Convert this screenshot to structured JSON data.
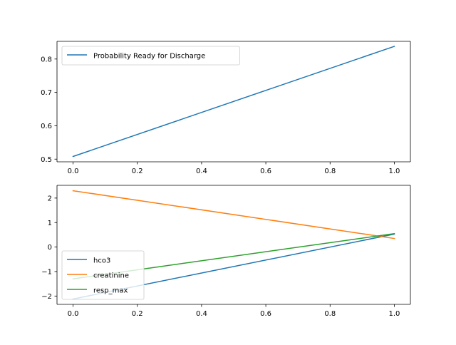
{
  "chart_data": [
    {
      "type": "line",
      "title": "",
      "xlabel": "",
      "ylabel": "",
      "xlim": [
        -0.05,
        1.05
      ],
      "ylim": [
        0.492,
        0.853
      ],
      "xticks": [
        {
          "v": 0.0,
          "label": "0.0"
        },
        {
          "v": 0.2,
          "label": "0.2"
        },
        {
          "v": 0.4,
          "label": "0.4"
        },
        {
          "v": 0.6,
          "label": "0.6"
        },
        {
          "v": 0.8,
          "label": "0.8"
        },
        {
          "v": 1.0,
          "label": "1.0"
        }
      ],
      "yticks": [
        {
          "v": 0.5,
          "label": "0.5"
        },
        {
          "v": 0.6,
          "label": "0.6"
        },
        {
          "v": 0.7,
          "label": "0.7"
        },
        {
          "v": 0.8,
          "label": "0.8"
        }
      ],
      "legend": "upper-left",
      "series": [
        {
          "name": "Probability Ready for Discharge",
          "color": "#1f77b4",
          "x": [
            0,
            1
          ],
          "y": [
            0.508,
            0.838
          ]
        }
      ]
    },
    {
      "type": "line",
      "title": "",
      "xlabel": "",
      "ylabel": "",
      "xlim": [
        -0.05,
        1.05
      ],
      "ylim": [
        -2.34,
        2.52
      ],
      "xticks": [
        {
          "v": 0.0,
          "label": "0.0"
        },
        {
          "v": 0.2,
          "label": "0.2"
        },
        {
          "v": 0.4,
          "label": "0.4"
        },
        {
          "v": 0.6,
          "label": "0.6"
        },
        {
          "v": 0.8,
          "label": "0.8"
        },
        {
          "v": 1.0,
          "label": "1.0"
        }
      ],
      "yticks": [
        {
          "v": 2,
          "label": "2"
        },
        {
          "v": 1,
          "label": "1"
        },
        {
          "v": 0,
          "label": "0"
        },
        {
          "v": -1,
          "label": "−1"
        },
        {
          "v": -2,
          "label": "−2"
        }
      ],
      "legend": "lower-left",
      "series": [
        {
          "name": "hco3",
          "color": "#1f77b4",
          "x": [
            0,
            1
          ],
          "y": [
            -2.12,
            0.53
          ]
        },
        {
          "name": "creatinine",
          "color": "#ff7f0e",
          "x": [
            0,
            1
          ],
          "y": [
            2.3,
            0.35
          ]
        },
        {
          "name": "resp_max",
          "color": "#2ca02c",
          "x": [
            0,
            1
          ],
          "y": [
            -1.3,
            0.55
          ]
        }
      ]
    }
  ]
}
